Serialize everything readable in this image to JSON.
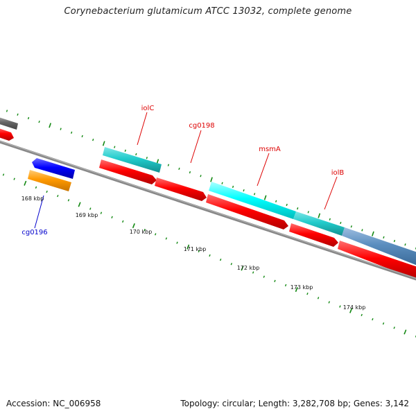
{
  "title": "Corynebacterium glutamicum ATCC 13032, complete genome",
  "footer": {
    "accession": "Accession: NC_006958",
    "stats": "Topology: circular; Length: 3,282,708 bp; Genes: 3,142"
  },
  "scale_labels": [
    "168 kbp",
    "169 kbp",
    "170 kbp",
    "171 kbp",
    "172 kbp",
    "173 kbp",
    "174 kbp"
  ],
  "gene_labels": [
    {
      "name": "iolC",
      "color": "#dd0000"
    },
    {
      "name": "cg0198",
      "color": "#dd0000"
    },
    {
      "name": "msmA",
      "color": "#dd0000"
    },
    {
      "name": "iolB",
      "color": "#dd0000"
    },
    {
      "name": "cg0196",
      "color": "#0000cc"
    }
  ],
  "feature_colors": {
    "backbone": "#888888",
    "cds_forward": "#ff0000",
    "gene_cyan": "#22cccc",
    "gene_bright_cyan": "#00ffff",
    "gene_steelblue": "#5b8ebf",
    "gene_blue": "#0000ff",
    "gene_orange": "#ff9900",
    "gene_gray": "#666666",
    "ticks": "#118811"
  }
}
